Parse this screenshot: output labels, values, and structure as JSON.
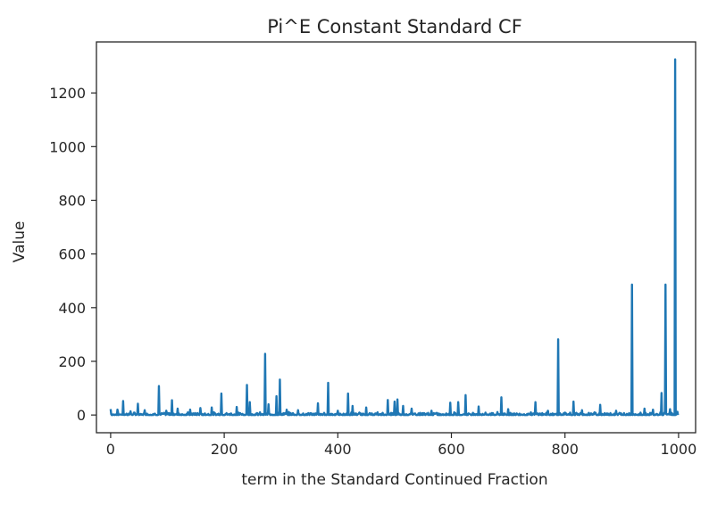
{
  "chart_data": {
    "type": "line",
    "title": "Pi^E Constant Standard CF",
    "xlabel": "term in the Standard Continued Fraction",
    "ylabel": "Value",
    "xlim": [
      -25,
      1030
    ],
    "ylim": [
      -66,
      1390
    ],
    "xticks": [
      0,
      200,
      400,
      600,
      800,
      1000
    ],
    "yticks": [
      0,
      200,
      400,
      600,
      800,
      1000,
      1200
    ],
    "xtick_labels": [
      "0",
      "200",
      "400",
      "600",
      "800",
      "1000"
    ],
    "ytick_labels": [
      "0",
      "200",
      "400",
      "600",
      "800",
      "1000",
      "1200"
    ],
    "grid": false,
    "legend": "none",
    "series_color": "#1f77b4",
    "baseline_max": 12,
    "series": [
      {
        "spikes": [
          {
            "x": 0,
            "y": 22
          },
          {
            "x": 12,
            "y": 20
          },
          {
            "x": 22,
            "y": 52
          },
          {
            "x": 35,
            "y": 14
          },
          {
            "x": 48,
            "y": 42
          },
          {
            "x": 60,
            "y": 18
          },
          {
            "x": 85,
            "y": 108
          },
          {
            "x": 98,
            "y": 16
          },
          {
            "x": 108,
            "y": 55
          },
          {
            "x": 118,
            "y": 24
          },
          {
            "x": 140,
            "y": 20
          },
          {
            "x": 158,
            "y": 26
          },
          {
            "x": 178,
            "y": 28
          },
          {
            "x": 195,
            "y": 80
          },
          {
            "x": 222,
            "y": 30
          },
          {
            "x": 240,
            "y": 112
          },
          {
            "x": 245,
            "y": 48
          },
          {
            "x": 272,
            "y": 228
          },
          {
            "x": 278,
            "y": 40
          },
          {
            "x": 292,
            "y": 70
          },
          {
            "x": 298,
            "y": 132
          },
          {
            "x": 310,
            "y": 20
          },
          {
            "x": 330,
            "y": 18
          },
          {
            "x": 365,
            "y": 44
          },
          {
            "x": 383,
            "y": 120
          },
          {
            "x": 400,
            "y": 16
          },
          {
            "x": 418,
            "y": 80
          },
          {
            "x": 426,
            "y": 34
          },
          {
            "x": 450,
            "y": 28
          },
          {
            "x": 488,
            "y": 56
          },
          {
            "x": 500,
            "y": 50
          },
          {
            "x": 505,
            "y": 58
          },
          {
            "x": 515,
            "y": 34
          },
          {
            "x": 530,
            "y": 24
          },
          {
            "x": 565,
            "y": 16
          },
          {
            "x": 598,
            "y": 46
          },
          {
            "x": 612,
            "y": 48
          },
          {
            "x": 625,
            "y": 74
          },
          {
            "x": 648,
            "y": 32
          },
          {
            "x": 688,
            "y": 66
          },
          {
            "x": 700,
            "y": 22
          },
          {
            "x": 748,
            "y": 48
          },
          {
            "x": 770,
            "y": 16
          },
          {
            "x": 788,
            "y": 282
          },
          {
            "x": 815,
            "y": 50
          },
          {
            "x": 830,
            "y": 18
          },
          {
            "x": 862,
            "y": 38
          },
          {
            "x": 890,
            "y": 16
          },
          {
            "x": 918,
            "y": 486
          },
          {
            "x": 940,
            "y": 24
          },
          {
            "x": 955,
            "y": 20
          },
          {
            "x": 970,
            "y": 82
          },
          {
            "x": 977,
            "y": 486
          },
          {
            "x": 985,
            "y": 22
          },
          {
            "x": 994,
            "y": 1325
          },
          {
            "x": 998,
            "y": 12
          }
        ]
      }
    ]
  }
}
